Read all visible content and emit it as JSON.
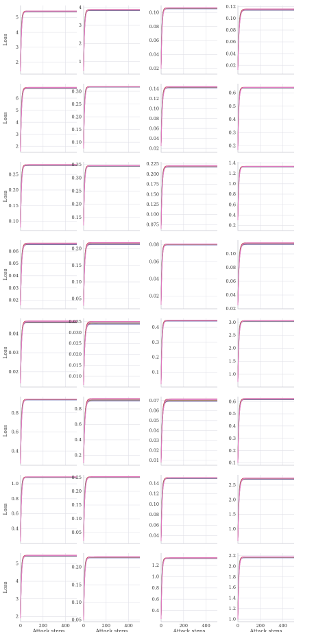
{
  "figure": {
    "rows": 8,
    "cols": 4,
    "series_colors": [
      "#4c72b0",
      "#dd8452",
      "#55a868",
      "#c44e52",
      "#8172b3",
      "#937860",
      "#da8bc3",
      "#e377c2"
    ]
  },
  "chart_data": [
    {
      "type": "line",
      "row": 0,
      "col": 0,
      "ylabel": "Loss",
      "xlabel": "",
      "xlim": [
        0,
        500
      ],
      "ylim": [
        1.2,
        5.8
      ],
      "yticks": [
        2,
        3,
        4,
        5
      ],
      "yticklabels": [
        "2",
        "3",
        "4",
        "5"
      ],
      "xticks": [],
      "xticklabels": [],
      "start": 1.4,
      "plateau": 5.4,
      "ramp": 22,
      "spread": 0.02
    },
    {
      "type": "line",
      "row": 0,
      "col": 1,
      "ylabel": "",
      "xlabel": "",
      "xlim": [
        0,
        500
      ],
      "ylim": [
        0.3,
        4.1
      ],
      "yticks": [
        1,
        2,
        3,
        4
      ],
      "yticklabels": [
        "1",
        "2",
        "3",
        "4"
      ],
      "xticks": [],
      "xticklabels": [],
      "start": 0.5,
      "plateau": 3.85,
      "ramp": 22,
      "spread": 0.02
    },
    {
      "type": "line",
      "row": 0,
      "col": 2,
      "ylabel": "",
      "xlabel": "",
      "xlim": [
        0,
        500
      ],
      "ylim": [
        0.012,
        0.11
      ],
      "yticks": [
        0.02,
        0.04,
        0.06,
        0.08,
        0.1
      ],
      "yticklabels": [
        "0.02",
        "0.04",
        "0.06",
        "0.08",
        "0.10"
      ],
      "xticks": [],
      "xticklabels": [],
      "start": 0.02,
      "plateau": 0.106,
      "ramp": 22,
      "spread": 0.0005
    },
    {
      "type": "line",
      "row": 0,
      "col": 3,
      "ylabel": "",
      "xlabel": "",
      "xlim": [
        0,
        500
      ],
      "ylim": [
        0.005,
        0.122
      ],
      "yticks": [
        0.02,
        0.04,
        0.06,
        0.08,
        0.1,
        0.12
      ],
      "yticklabels": [
        "0.02",
        "0.04",
        "0.06",
        "0.08",
        "0.10",
        "0.12"
      ],
      "xticks": [],
      "xticklabels": [],
      "start": 0.012,
      "plateau": 0.115,
      "ramp": 30,
      "spread": 0.0007
    },
    {
      "type": "line",
      "row": 1,
      "col": 0,
      "ylabel": "Loss",
      "xlabel": "",
      "xlim": [
        0,
        500
      ],
      "ylim": [
        1.5,
        7.2
      ],
      "yticks": [
        2,
        3,
        4,
        5,
        6
      ],
      "yticklabels": [
        "2",
        "3",
        "4",
        "5",
        "6"
      ],
      "xticks": [],
      "xticklabels": [],
      "start": 1.6,
      "plateau": 6.85,
      "ramp": 24,
      "spread": 0.03
    },
    {
      "type": "line",
      "row": 1,
      "col": 1,
      "ylabel": "",
      "xlabel": "",
      "xlim": [
        0,
        500
      ],
      "ylim": [
        0.06,
        0.33
      ],
      "yticks": [
        0.1,
        0.15,
        0.2,
        0.25,
        0.3
      ],
      "yticklabels": [
        "0.10",
        "0.15",
        "0.20",
        "0.25",
        "0.30"
      ],
      "xticks": [],
      "xticklabels": [],
      "start": 0.075,
      "plateau": 0.318,
      "ramp": 22,
      "spread": 0.001
    },
    {
      "type": "line",
      "row": 1,
      "col": 2,
      "ylabel": "",
      "xlabel": "",
      "xlim": [
        0,
        500
      ],
      "ylim": [
        0.012,
        0.15
      ],
      "yticks": [
        0.02,
        0.04,
        0.06,
        0.08,
        0.1,
        0.12,
        0.14
      ],
      "yticklabels": [
        "0.02",
        "0.04",
        "0.06",
        "0.08",
        "0.10",
        "0.12",
        "0.14"
      ],
      "xticks": [],
      "xticklabels": [],
      "start": 0.025,
      "plateau": 0.143,
      "ramp": 28,
      "spread": 0.0008
    },
    {
      "type": "line",
      "row": 1,
      "col": 3,
      "ylabel": "",
      "xlabel": "",
      "xlim": [
        0,
        500
      ],
      "ylim": [
        0.15,
        0.67
      ],
      "yticks": [
        0.2,
        0.3,
        0.4,
        0.5,
        0.6
      ],
      "yticklabels": [
        "0.2",
        "0.3",
        "0.4",
        "0.5",
        "0.6"
      ],
      "xticks": [],
      "xticklabels": [],
      "start": 0.17,
      "plateau": 0.64,
      "ramp": 22,
      "spread": 0.002
    },
    {
      "type": "line",
      "row": 2,
      "col": 0,
      "ylabel": "Loss",
      "xlabel": "",
      "xlim": [
        0,
        500
      ],
      "ylim": [
        0.07,
        0.29
      ],
      "yticks": [
        0.1,
        0.15,
        0.2,
        0.25
      ],
      "yticklabels": [
        "0.10",
        "0.15",
        "0.20",
        "0.25"
      ],
      "xticks": [],
      "xticklabels": [],
      "start": 0.08,
      "plateau": 0.28,
      "ramp": 22,
      "spread": 0.001
    },
    {
      "type": "line",
      "row": 2,
      "col": 1,
      "ylabel": "",
      "xlabel": "",
      "xlim": [
        0,
        500
      ],
      "ylim": [
        0.1,
        0.36
      ],
      "yticks": [
        0.15,
        0.2,
        0.25,
        0.3,
        0.35
      ],
      "yticklabels": [
        "0.15",
        "0.20",
        "0.25",
        "0.30",
        "0.35"
      ],
      "xticks": [],
      "xticklabels": [],
      "start": 0.12,
      "plateau": 0.345,
      "ramp": 22,
      "spread": 0.001
    },
    {
      "type": "line",
      "row": 2,
      "col": 2,
      "ylabel": "",
      "xlabel": "",
      "xlim": [
        0,
        500
      ],
      "ylim": [
        0.06,
        0.23
      ],
      "yticks": [
        0.075,
        0.1,
        0.125,
        0.15,
        0.175,
        0.2,
        0.225
      ],
      "yticklabels": [
        "0.075",
        "0.100",
        "0.125",
        "0.150",
        "0.175",
        "0.200",
        "0.225"
      ],
      "xticks": [],
      "xticklabels": [],
      "start": 0.065,
      "plateau": 0.219,
      "ramp": 26,
      "spread": 0.001
    },
    {
      "type": "line",
      "row": 2,
      "col": 3,
      "ylabel": "",
      "xlabel": "",
      "xlim": [
        0,
        500
      ],
      "ylim": [
        0.1,
        1.42
      ],
      "yticks": [
        0.2,
        0.4,
        0.6,
        0.8,
        1.0,
        1.2,
        1.4
      ],
      "yticklabels": [
        "0.2",
        "0.4",
        "0.6",
        "0.8",
        "1.0",
        "1.2",
        "1.4"
      ],
      "xticks": [],
      "xticklabels": [],
      "start": 0.3,
      "plateau": 1.33,
      "ramp": 22,
      "spread": 0.004
    },
    {
      "type": "line",
      "row": 3,
      "col": 0,
      "ylabel": "Loss",
      "xlabel": "",
      "xlim": [
        0,
        500
      ],
      "ylim": [
        0.013,
        0.069
      ],
      "yticks": [
        0.02,
        0.03,
        0.04,
        0.05,
        0.06
      ],
      "yticklabels": [
        "0.02",
        "0.03",
        "0.04",
        "0.05",
        "0.06"
      ],
      "xticks": [],
      "xticklabels": [],
      "start": 0.016,
      "plateau": 0.066,
      "ramp": 26,
      "spread": 0.0004
    },
    {
      "type": "line",
      "row": 3,
      "col": 1,
      "ylabel": "",
      "xlabel": "",
      "xlim": [
        0,
        500
      ],
      "ylim": [
        0.02,
        0.225
      ],
      "yticks": [
        0.05,
        0.1,
        0.15,
        0.2
      ],
      "yticklabels": [
        "0.05",
        "0.10",
        "0.15",
        "0.20"
      ],
      "xticks": [],
      "xticklabels": [],
      "start": 0.03,
      "plateau": 0.215,
      "ramp": 26,
      "spread": 0.002
    },
    {
      "type": "line",
      "row": 3,
      "col": 2,
      "ylabel": "",
      "xlabel": "",
      "xlim": [
        0,
        500
      ],
      "ylim": [
        0.005,
        0.085
      ],
      "yticks": [
        0.02,
        0.04,
        0.06,
        0.08
      ],
      "yticklabels": [
        "0.02",
        "0.04",
        "0.06",
        "0.08"
      ],
      "xticks": [],
      "xticklabels": [],
      "start": 0.01,
      "plateau": 0.08,
      "ramp": 22,
      "spread": 0.0004
    },
    {
      "type": "line",
      "row": 3,
      "col": 3,
      "ylabel": "",
      "xlabel": "",
      "xlim": [
        0,
        500
      ],
      "ylim": [
        0.02,
        0.12
      ],
      "yticks": [
        0.02,
        0.04,
        0.06,
        0.08,
        0.1
      ],
      "yticklabels": [
        "0.02",
        "0.04",
        "0.06",
        "0.08",
        "0.10"
      ],
      "xticks": [],
      "xticklabels": [],
      "start": 0.025,
      "plateau": 0.115,
      "ramp": 30,
      "spread": 0.0008
    },
    {
      "type": "line",
      "row": 4,
      "col": 0,
      "ylabel": "Loss",
      "xlabel": "",
      "xlim": [
        0,
        500
      ],
      "ylim": [
        0.012,
        0.048
      ],
      "yticks": [
        0.02,
        0.03,
        0.04
      ],
      "yticklabels": [
        "0.02",
        "0.03",
        "0.04"
      ],
      "xticks": [],
      "xticklabels": [],
      "start": 0.014,
      "plateau": 0.0462,
      "ramp": 24,
      "spread": 0.0003
    },
    {
      "type": "line",
      "row": 4,
      "col": 1,
      "ylabel": "",
      "xlabel": "",
      "xlim": [
        0,
        500
      ],
      "ylim": [
        0.005,
        0.0365
      ],
      "yticks": [
        0.01,
        0.015,
        0.02,
        0.025,
        0.03,
        0.035
      ],
      "yticklabels": [
        "0.010",
        "0.015",
        "0.020",
        "0.025",
        "0.030",
        "0.035"
      ],
      "xticks": [],
      "xticklabels": [],
      "start": 0.006,
      "plateau": 0.0345,
      "ramp": 30,
      "spread": 0.0004
    },
    {
      "type": "line",
      "row": 4,
      "col": 2,
      "ylabel": "",
      "xlabel": "",
      "xlim": [
        0,
        500
      ],
      "ylim": [
        0.0,
        0.46
      ],
      "yticks": [
        0.1,
        0.2,
        0.3,
        0.4
      ],
      "yticklabels": [
        "0.1",
        "0.2",
        "0.3",
        "0.4"
      ],
      "xticks": [],
      "xticklabels": [],
      "start": 0.02,
      "plateau": 0.445,
      "ramp": 22,
      "spread": 0.002
    },
    {
      "type": "line",
      "row": 4,
      "col": 3,
      "ylabel": "",
      "xlabel": "",
      "xlim": [
        0,
        500
      ],
      "ylim": [
        0.5,
        3.15
      ],
      "yticks": [
        1.0,
        1.5,
        2.0,
        2.5,
        3.0
      ],
      "yticklabels": [
        "1.0",
        "1.5",
        "2.0",
        "2.5",
        "3.0"
      ],
      "xticks": [],
      "xticklabels": [],
      "start": 0.7,
      "plateau": 3.05,
      "ramp": 24,
      "spread": 0.01
    },
    {
      "type": "line",
      "row": 5,
      "col": 0,
      "ylabel": "Loss",
      "xlabel": "",
      "xlim": [
        0,
        500
      ],
      "ylim": [
        0.25,
        0.97
      ],
      "yticks": [
        0.4,
        0.6,
        0.8
      ],
      "yticklabels": [
        "0.4",
        "0.6",
        "0.8"
      ],
      "xticks": [],
      "xticklabels": [],
      "start": 0.27,
      "plateau": 0.94,
      "ramp": 24,
      "spread": 0.003
    },
    {
      "type": "line",
      "row": 5,
      "col": 1,
      "ylabel": "",
      "xlabel": "",
      "xlim": [
        0,
        500
      ],
      "ylim": [
        0.07,
        0.96
      ],
      "yticks": [
        0.2,
        0.4,
        0.6,
        0.8
      ],
      "yticklabels": [
        "0.2",
        "0.4",
        "0.6",
        "0.8"
      ],
      "xticks": [],
      "xticklabels": [],
      "start": 0.1,
      "plateau": 0.92,
      "ramp": 30,
      "spread": 0.01
    },
    {
      "type": "line",
      "row": 5,
      "col": 2,
      "ylabel": "",
      "xlabel": "",
      "xlim": [
        0,
        500
      ],
      "ylim": [
        0.005,
        0.074
      ],
      "yticks": [
        0.01,
        0.02,
        0.03,
        0.04,
        0.05,
        0.06,
        0.07
      ],
      "yticklabels": [
        "0.01",
        "0.02",
        "0.03",
        "0.04",
        "0.05",
        "0.06",
        "0.07"
      ],
      "xticks": [],
      "xticklabels": [],
      "start": 0.008,
      "plateau": 0.0705,
      "ramp": 30,
      "spread": 0.0008
    },
    {
      "type": "line",
      "row": 5,
      "col": 3,
      "ylabel": "",
      "xlabel": "",
      "xlim": [
        0,
        500
      ],
      "ylim": [
        0.08,
        0.64
      ],
      "yticks": [
        0.1,
        0.2,
        0.3,
        0.4,
        0.5,
        0.6
      ],
      "yticklabels": [
        "0.1",
        "0.2",
        "0.3",
        "0.4",
        "0.5",
        "0.6"
      ],
      "xticks": [],
      "xticklabels": [],
      "start": 0.1,
      "plateau": 0.62,
      "ramp": 26,
      "spread": 0.003
    },
    {
      "type": "line",
      "row": 6,
      "col": 0,
      "ylabel": "Loss",
      "xlabel": "",
      "xlim": [
        0,
        500
      ],
      "ylim": [
        0.2,
        1.12
      ],
      "yticks": [
        0.4,
        0.6,
        0.8,
        1.0
      ],
      "yticklabels": [
        "0.4",
        "0.6",
        "0.8",
        "1.0"
      ],
      "xticks": [],
      "xticklabels": [],
      "start": 0.23,
      "plateau": 1.09,
      "ramp": 22,
      "spread": 0.003
    },
    {
      "type": "line",
      "row": 6,
      "col": 1,
      "ylabel": "",
      "xlabel": "",
      "xlim": [
        0,
        500
      ],
      "ylim": [
        0.01,
        0.26
      ],
      "yticks": [
        0.05,
        0.1,
        0.15,
        0.2,
        0.25
      ],
      "yticklabels": [
        "0.05",
        "0.10",
        "0.15",
        "0.20",
        "0.25"
      ],
      "xticks": [],
      "xticklabels": [],
      "start": 0.02,
      "plateau": 0.252,
      "ramp": 26,
      "spread": 0.001
    },
    {
      "type": "line",
      "row": 6,
      "col": 2,
      "ylabel": "",
      "xlabel": "",
      "xlim": [
        0,
        500
      ],
      "ylim": [
        0.025,
        0.156
      ],
      "yticks": [
        0.04,
        0.06,
        0.08,
        0.1,
        0.12,
        0.14
      ],
      "yticklabels": [
        "0.04",
        "0.06",
        "0.08",
        "0.10",
        "0.12",
        "0.14"
      ],
      "xticks": [],
      "xticklabels": [],
      "start": 0.03,
      "plateau": 0.15,
      "ramp": 26,
      "spread": 0.0006
    },
    {
      "type": "line",
      "row": 6,
      "col": 3,
      "ylabel": "",
      "xlabel": "",
      "xlim": [
        0,
        500
      ],
      "ylim": [
        0.5,
        2.85
      ],
      "yticks": [
        1.0,
        1.5,
        2.0,
        2.5
      ],
      "yticklabels": [
        "1.0",
        "1.5",
        "2.0",
        "2.5"
      ],
      "xticks": [],
      "xticklabels": [],
      "start": 0.6,
      "plateau": 2.72,
      "ramp": 28,
      "spread": 0.015
    },
    {
      "type": "line",
      "row": 7,
      "col": 0,
      "ylabel": "Loss",
      "xlabel": "Attack steps",
      "xlim": [
        0,
        500
      ],
      "ylim": [
        1.7,
        5.6
      ],
      "yticks": [
        2,
        3,
        4,
        5
      ],
      "yticklabels": [
        "2",
        "3",
        "4",
        "5"
      ],
      "xticks": [
        0,
        200,
        400
      ],
      "xticklabels": [
        "0",
        "200",
        "400"
      ],
      "start": 1.9,
      "plateau": 5.45,
      "ramp": 22,
      "spread": 0.02
    },
    {
      "type": "line",
      "row": 7,
      "col": 1,
      "ylabel": "",
      "xlabel": "Attack steps",
      "xlim": [
        0,
        500
      ],
      "ylim": [
        0.045,
        0.24
      ],
      "yticks": [
        0.05,
        0.1,
        0.15,
        0.2
      ],
      "yticklabels": [
        "0.05",
        "0.10",
        "0.15",
        "0.20"
      ],
      "xticks": [
        0,
        200,
        400
      ],
      "xticklabels": [
        "0",
        "200",
        "400"
      ],
      "start": 0.05,
      "plateau": 0.228,
      "ramp": 24,
      "spread": 0.001
    },
    {
      "type": "line",
      "row": 7,
      "col": 2,
      "ylabel": "",
      "xlabel": "Attack steps",
      "xlim": [
        0,
        500
      ],
      "ylim": [
        0.2,
        1.42
      ],
      "yticks": [
        0.4,
        0.6,
        0.8,
        1.0,
        1.2
      ],
      "yticklabels": [
        "0.4",
        "0.6",
        "0.8",
        "1.0",
        "1.2"
      ],
      "xticks": [
        0,
        200,
        400
      ],
      "xticklabels": [
        "0",
        "200",
        "400"
      ],
      "start": 0.25,
      "plateau": 1.33,
      "ramp": 22,
      "spread": 0.005
    },
    {
      "type": "line",
      "row": 7,
      "col": 3,
      "ylabel": "",
      "xlabel": "Attack steps",
      "xlim": [
        0,
        500
      ],
      "ylim": [
        0.95,
        2.25
      ],
      "yticks": [
        1.0,
        1.2,
        1.4,
        1.6,
        1.8,
        2.0,
        2.2
      ],
      "yticklabels": [
        "1.0",
        "1.2",
        "1.4",
        "1.6",
        "1.8",
        "2.0",
        "2.2"
      ],
      "xticks": [
        0,
        200,
        400
      ],
      "xticklabels": [
        "0",
        "200",
        "400"
      ],
      "start": 1.0,
      "plateau": 2.17,
      "ramp": 22,
      "spread": 0.006
    }
  ]
}
